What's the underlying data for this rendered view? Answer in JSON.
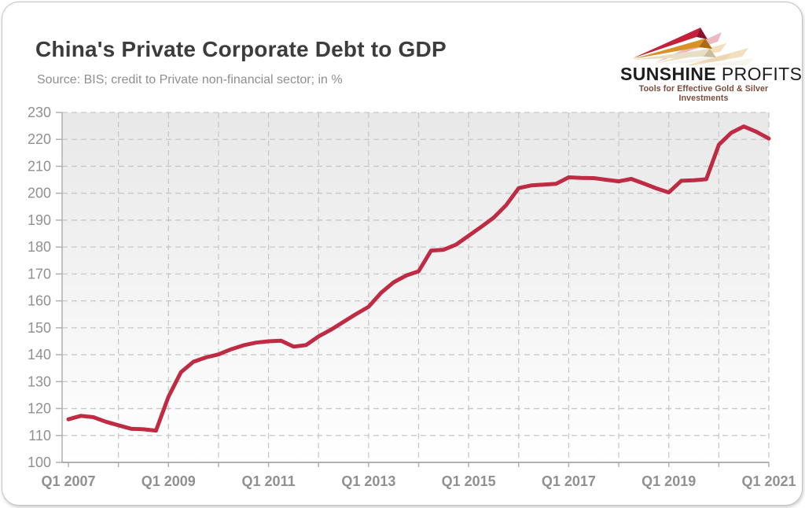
{
  "header": {
    "title": "China's Private Corporate Debt to GDP",
    "subtitle": "Source: BIS; credit to Private non-financial sector; in %"
  },
  "logo": {
    "brand_bold": "SUNSHINE",
    "brand_light": "PROFITS",
    "tagline": "Tools for Effective Gold & Silver Investments",
    "colors": {
      "arrow_red": "#c51f3b",
      "arrow_gold": "#d89328",
      "arrow_cream": "#e7dec6",
      "tagline_text": "#7c4a39"
    }
  },
  "chart_data": {
    "type": "line",
    "title": "China's Private Corporate Debt to GDP",
    "subtitle": "Source: BIS; credit to Private non-financial sector; in %",
    "series_name": "China private corporate debt to GDP (%)",
    "x": [
      "Q1 2007",
      "Q2 2007",
      "Q3 2007",
      "Q4 2007",
      "Q1 2008",
      "Q2 2008",
      "Q3 2008",
      "Q4 2008",
      "Q1 2009",
      "Q2 2009",
      "Q3 2009",
      "Q4 2009",
      "Q1 2010",
      "Q2 2010",
      "Q3 2010",
      "Q4 2010",
      "Q1 2011",
      "Q2 2011",
      "Q3 2011",
      "Q4 2011",
      "Q1 2012",
      "Q2 2012",
      "Q3 2012",
      "Q4 2012",
      "Q1 2013",
      "Q2 2013",
      "Q3 2013",
      "Q4 2013",
      "Q1 2014",
      "Q2 2014",
      "Q3 2014",
      "Q4 2014",
      "Q1 2015",
      "Q2 2015",
      "Q3 2015",
      "Q4 2015",
      "Q1 2016",
      "Q2 2016",
      "Q3 2016",
      "Q4 2016",
      "Q1 2017",
      "Q2 2017",
      "Q3 2017",
      "Q4 2017",
      "Q1 2018",
      "Q2 2018",
      "Q3 2018",
      "Q4 2018",
      "Q1 2019",
      "Q2 2019",
      "Q3 2019",
      "Q4 2019",
      "Q1 2020",
      "Q2 2020",
      "Q3 2020",
      "Q4 2020",
      "Q1 2021"
    ],
    "values": [
      116.0,
      117.3,
      116.8,
      115.1,
      113.8,
      112.5,
      112.3,
      111.8,
      124.4,
      133.5,
      137.4,
      139.0,
      140.1,
      142.0,
      143.5,
      144.5,
      145.0,
      145.2,
      143.0,
      143.6,
      146.8,
      149.3,
      152.2,
      155.1,
      157.8,
      163.0,
      166.9,
      169.4,
      171.0,
      178.7,
      179.0,
      180.9,
      184.2,
      187.5,
      190.9,
      195.6,
      201.9,
      202.9,
      203.2,
      203.5,
      205.9,
      205.7,
      205.6,
      205.0,
      204.4,
      205.3,
      203.6,
      201.8,
      200.3,
      204.6,
      204.8,
      205.2,
      218.0,
      222.5,
      224.8,
      222.8,
      220.3
    ],
    "x_tick_labels": [
      "Q1 2007",
      "Q1 2009",
      "Q1 2011",
      "Q1 2013",
      "Q1 2015",
      "Q1 2017",
      "Q1 2019",
      "Q1 2021"
    ],
    "y_tick_labels": [
      100,
      110,
      120,
      130,
      140,
      150,
      160,
      170,
      180,
      190,
      200,
      210,
      220,
      230
    ],
    "ylim": [
      100,
      230
    ],
    "y_step": 10,
    "grid": "dashed, horizontal every 10, vertical every year",
    "legend": "none",
    "colors": {
      "line": "#be2b43",
      "grid": "#c8c8c8",
      "axis": "#b0b0b0",
      "tick_text": "#909090",
      "plot_bg_top": "#e8e8e8",
      "plot_bg_bottom": "#ffffff"
    }
  }
}
